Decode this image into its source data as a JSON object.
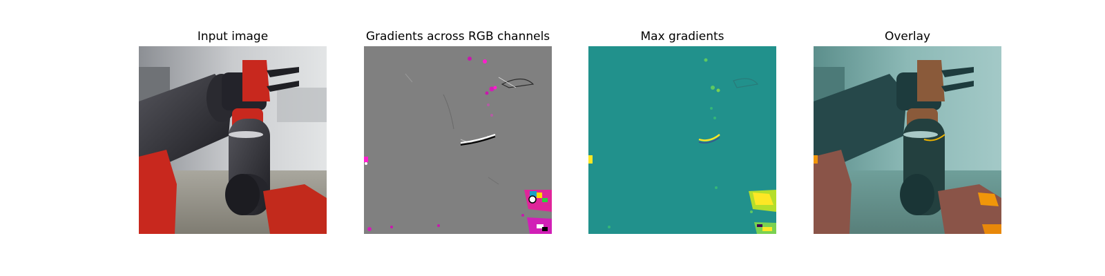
{
  "panels": [
    {
      "id": "input",
      "title": "Input image"
    },
    {
      "id": "gradients",
      "title": "Gradients across RGB channels"
    },
    {
      "id": "max",
      "title": "Max gradients"
    },
    {
      "id": "overlay",
      "title": "Overlay"
    }
  ],
  "colors": {
    "background": "#ffffff",
    "robot_red": "#c8281e",
    "robot_black": "#2a2a30",
    "gradient_gray": "#808080",
    "viridis_teal": "#21918c",
    "viridis_green": "#5ec962",
    "viridis_yellow": "#fde725",
    "gradient_magenta": "#ff1dce",
    "overlay_tint": "#4aa5a0",
    "overlay_orange": "#f0960a"
  }
}
